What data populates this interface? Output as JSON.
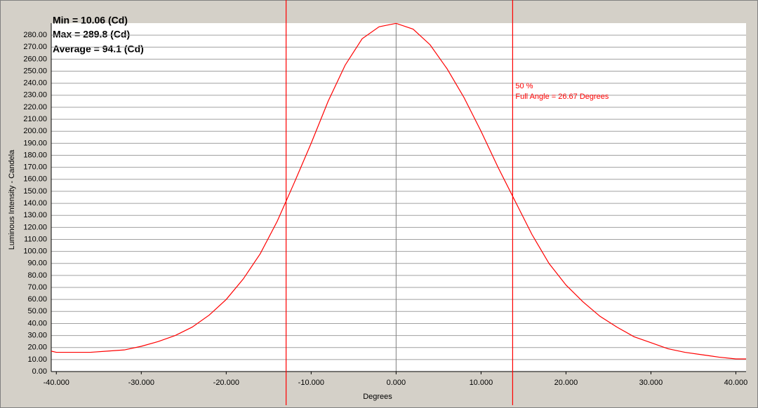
{
  "chart_data": {
    "type": "line",
    "stats": [
      "Min = 10.06 (Cd)",
      "Max = 289.8 (Cd)",
      "Average = 94.1 (Cd)"
    ],
    "annotation": [
      "50 %",
      "Full Angle = 26.67 Degrees"
    ],
    "xlabel": "Degrees",
    "ylabel": "Luminous Intensity - Candela",
    "x": [
      -40.6,
      -40,
      -38,
      -36,
      -34,
      -32,
      -30,
      -28,
      -26,
      -24,
      -22,
      -20,
      -18,
      -16,
      -14,
      -12,
      -10,
      -8,
      -6,
      -4,
      -2,
      0,
      2,
      4,
      6,
      8,
      10,
      12,
      14,
      16,
      18,
      20,
      22,
      24,
      26,
      28,
      30,
      32,
      34,
      36,
      38,
      40,
      41.2
    ],
    "series": [
      {
        "color": "#ff0000",
        "values": [
          17,
          16,
          16,
          16,
          17,
          18,
          21,
          25,
          30,
          37,
          47,
          60,
          77,
          98,
          125,
          157,
          190,
          225,
          255,
          277,
          287,
          289.8,
          285,
          272,
          252,
          228,
          200,
          170,
          142,
          114,
          90,
          72,
          58,
          46,
          37,
          29,
          24,
          19,
          16,
          14,
          12,
          10.5,
          10.5
        ]
      }
    ],
    "markers": [
      -12.95,
      13.72
    ],
    "marker_color": "#ff0000",
    "xlim": [
      -40.6,
      41.2
    ],
    "ylim": [
      0,
      290
    ],
    "xticks": [
      {
        "value": -40,
        "label": "-40.000"
      },
      {
        "value": -30,
        "label": "-30.000"
      },
      {
        "value": -20,
        "label": "-20.000"
      },
      {
        "value": -10,
        "label": "-10.000"
      },
      {
        "value": 0,
        "label": "0.000"
      },
      {
        "value": 10,
        "label": "10.000"
      },
      {
        "value": 20,
        "label": "20.000"
      },
      {
        "value": 30,
        "label": "30.000"
      },
      {
        "value": 40,
        "label": "40.000"
      }
    ],
    "yticks": [
      {
        "value": 0,
        "label": "0.00"
      },
      {
        "value": 10,
        "label": "10.00"
      },
      {
        "value": 20,
        "label": "20.00"
      },
      {
        "value": 30,
        "label": "30.00"
      },
      {
        "value": 40,
        "label": "40.00"
      },
      {
        "value": 50,
        "label": "50.00"
      },
      {
        "value": 60,
        "label": "60.00"
      },
      {
        "value": 70,
        "label": "70.00"
      },
      {
        "value": 80,
        "label": "80.00"
      },
      {
        "value": 90,
        "label": "90.00"
      },
      {
        "value": 100,
        "label": "100.00"
      },
      {
        "value": 110,
        "label": "110.00"
      },
      {
        "value": 120,
        "label": "120.00"
      },
      {
        "value": 130,
        "label": "130.00"
      },
      {
        "value": 140,
        "label": "140.00"
      },
      {
        "value": 150,
        "label": "150.00"
      },
      {
        "value": 160,
        "label": "160.00"
      },
      {
        "value": 170,
        "label": "170.00"
      },
      {
        "value": 180,
        "label": "180.00"
      },
      {
        "value": 190,
        "label": "190.00"
      },
      {
        "value": 200,
        "label": "200.00"
      },
      {
        "value": 210,
        "label": "210.00"
      },
      {
        "value": 220,
        "label": "220.00"
      },
      {
        "value": 230,
        "label": "230.00"
      },
      {
        "value": 240,
        "label": "240.00"
      },
      {
        "value": 250,
        "label": "250.00"
      },
      {
        "value": 260,
        "label": "260.00"
      },
      {
        "value": 270,
        "label": "270.00"
      },
      {
        "value": 280,
        "label": "280.00"
      }
    ],
    "grid": true
  }
}
